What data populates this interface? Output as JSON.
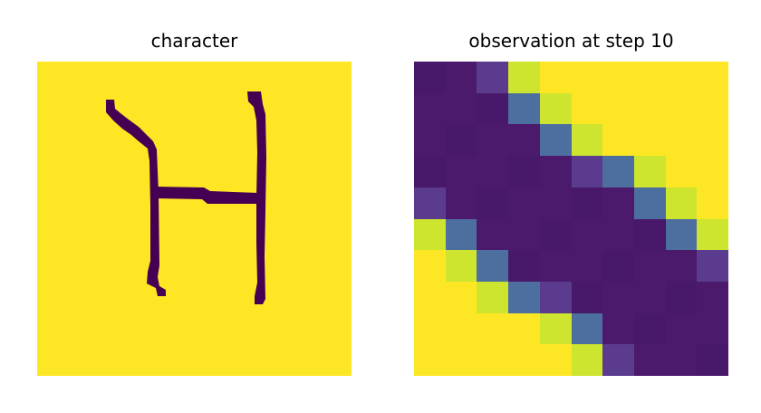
{
  "panels": {
    "left_title": "character",
    "right_title": "observation at step 10"
  },
  "colors": {
    "background_yellow": "#fde725",
    "stroke_dark": "#440154",
    "deep_purple": "#48186a",
    "purple": "#4b1a6d",
    "mid_purple": "#5b3b8e",
    "blue_violet": "#4f5a95",
    "blue": "#4c6fa0",
    "lime": "#cde52e"
  },
  "observation_grid": {
    "rows": 10,
    "cols": 10,
    "cells": [
      [
        "P",
        "P",
        "M",
        "L",
        "Y",
        "Y",
        "Y",
        "Y",
        "Y",
        "Y"
      ],
      [
        "P",
        "P",
        "P",
        "B",
        "L",
        "Y",
        "Y",
        "Y",
        "Y",
        "Y"
      ],
      [
        "P",
        "P",
        "P",
        "P",
        "B",
        "L",
        "Y",
        "Y",
        "Y",
        "Y"
      ],
      [
        "P",
        "P",
        "P",
        "P",
        "P",
        "M",
        "B",
        "L",
        "Y",
        "Y"
      ],
      [
        "M",
        "P",
        "P",
        "P",
        "P",
        "P",
        "P",
        "B",
        "L",
        "Y"
      ],
      [
        "L",
        "B",
        "P",
        "P",
        "P",
        "P",
        "P",
        "P",
        "B",
        "L"
      ],
      [
        "Y",
        "L",
        "B",
        "P",
        "P",
        "P",
        "P",
        "P",
        "P",
        "M"
      ],
      [
        "Y",
        "Y",
        "L",
        "B",
        "M",
        "P",
        "P",
        "P",
        "P",
        "P"
      ],
      [
        "Y",
        "Y",
        "Y",
        "Y",
        "L",
        "B",
        "P",
        "P",
        "P",
        "P"
      ],
      [
        "Y",
        "Y",
        "Y",
        "Y",
        "Y",
        "L",
        "M",
        "P",
        "P",
        "P"
      ]
    ]
  }
}
